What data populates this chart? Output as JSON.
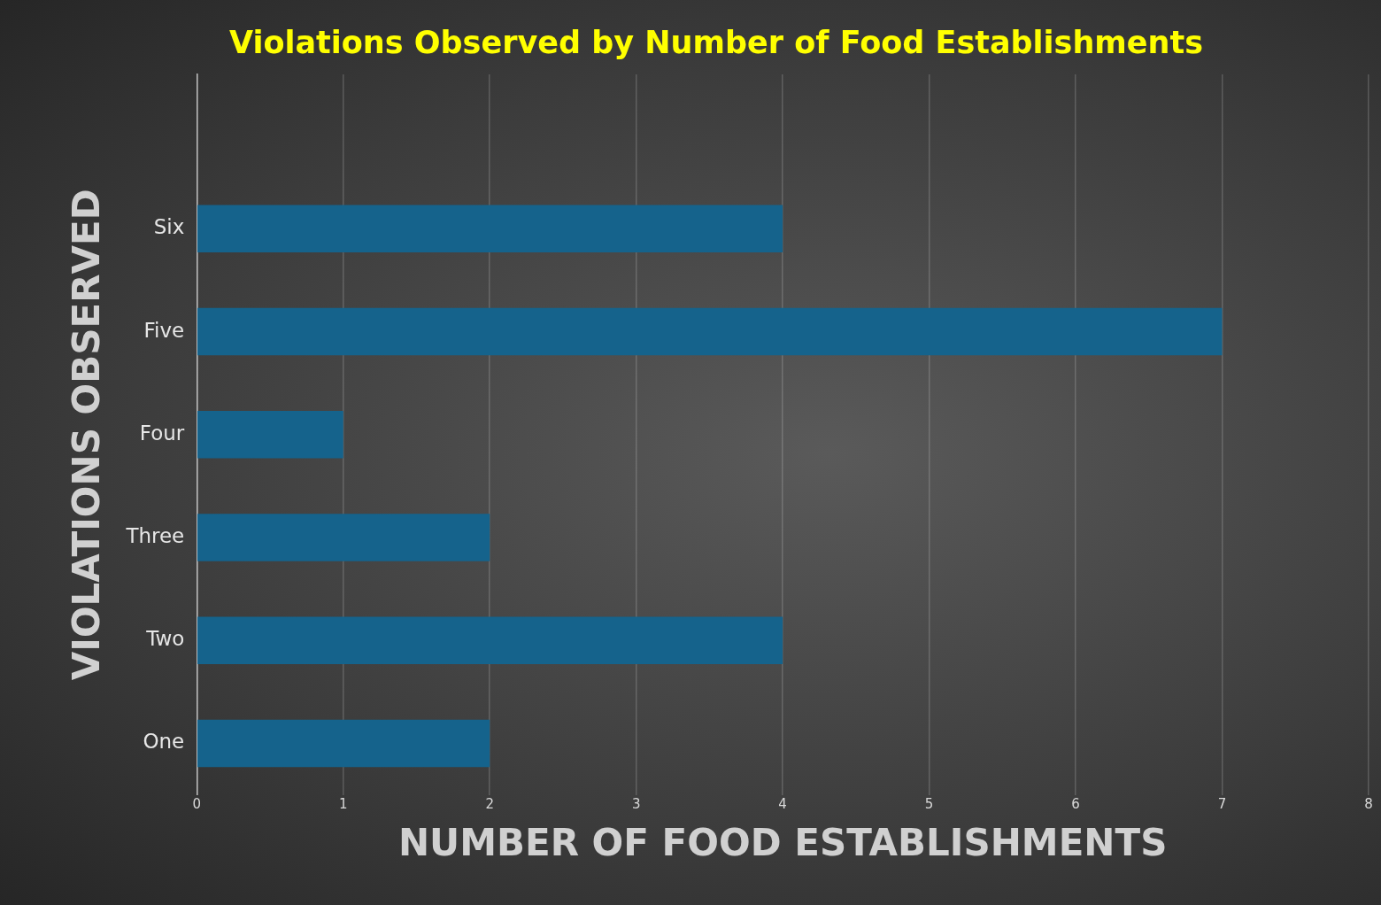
{
  "chart_data": {
    "type": "bar",
    "orientation": "horizontal",
    "title": "Violations Observed by Number of Food Establishments",
    "xlabel": "NUMBER OF FOOD ESTABLISHMENTS",
    "ylabel": "VIOLATIONS OBSERVED",
    "categories": [
      null,
      "Six",
      "Five",
      "Four",
      "Three",
      "Two",
      "One"
    ],
    "values": [
      null,
      4,
      7,
      1,
      2,
      4,
      2
    ],
    "color": "#15638c",
    "xlim": [
      0,
      8
    ],
    "xticks": [
      0,
      1,
      2,
      3,
      4,
      5,
      6,
      7,
      8
    ],
    "grid": "x",
    "legend": false
  }
}
